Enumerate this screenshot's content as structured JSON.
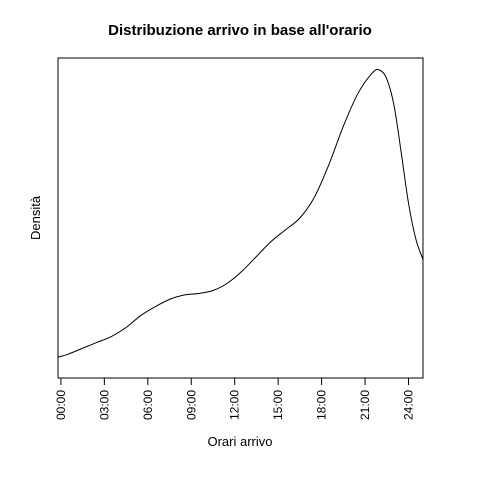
{
  "chart_data": {
    "type": "line",
    "title": "Distribuzione arrivo in base all'orario",
    "xlabel": "Orari arrivo",
    "ylabel": "Densità",
    "x_tick_values": [
      0,
      3,
      6,
      9,
      12,
      15,
      18,
      21,
      24
    ],
    "x_tick_labels": [
      "00:00",
      "03:00",
      "06:00",
      "09:00",
      "12:00",
      "15:00",
      "18:00",
      "21:00",
      "24:00"
    ],
    "xlim": [
      -0.2,
      25.0
    ],
    "ylim": [
      0.0,
      1.0
    ],
    "y_ticks_shown": false,
    "grid": false,
    "series": [
      {
        "x": [
          -0.2,
          0.5,
          1.5,
          2.5,
          3.5,
          4.5,
          5.5,
          6.5,
          7.5,
          8.5,
          9.5,
          10.5,
          11.5,
          12.5,
          13.5,
          14.5,
          15.5,
          16.5,
          17.5,
          18.5,
          19.5,
          20.5,
          21.5,
          22.0,
          22.5,
          23.0,
          23.5,
          24.0,
          24.5,
          25.0
        ],
        "y": [
          0.03,
          0.04,
          0.06,
          0.08,
          0.1,
          0.13,
          0.17,
          0.2,
          0.225,
          0.24,
          0.245,
          0.255,
          0.28,
          0.32,
          0.37,
          0.42,
          0.46,
          0.5,
          0.57,
          0.68,
          0.81,
          0.92,
          0.99,
          1.0,
          0.97,
          0.88,
          0.72,
          0.55,
          0.43,
          0.36
        ]
      }
    ]
  }
}
